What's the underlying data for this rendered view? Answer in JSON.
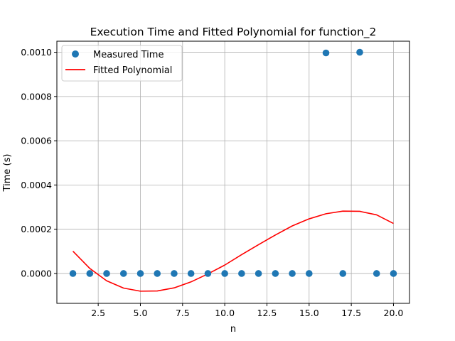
{
  "chart_data": {
    "type": "scatter",
    "title": "Execution Time and Fitted Polynomial for function_2",
    "xlabel": "n",
    "ylabel": "Time (s)",
    "xlim": [
      0.05,
      20.95
    ],
    "ylim": [
      -0.000135,
      0.00105
    ],
    "xticks": [
      2.5,
      5.0,
      7.5,
      10.0,
      12.5,
      15.0,
      17.5,
      20.0
    ],
    "xtick_labels": [
      "2.5",
      "5.0",
      "7.5",
      "10.0",
      "12.5",
      "15.0",
      "17.5",
      "20.0"
    ],
    "yticks": [
      0.0,
      0.0002,
      0.0004,
      0.0006,
      0.0008,
      0.001
    ],
    "ytick_labels": [
      "0.0000",
      "0.0002",
      "0.0004",
      "0.0006",
      "0.0008",
      "0.0010"
    ],
    "grid": true,
    "legend_position": "top-left",
    "series": [
      {
        "name": "Measured Time",
        "kind": "scatter",
        "color": "#1f77b4",
        "x": [
          1,
          2,
          3,
          4,
          5,
          6,
          7,
          8,
          9,
          10,
          11,
          12,
          13,
          14,
          15,
          16,
          17,
          18,
          19,
          20
        ],
        "y": [
          0,
          0,
          0,
          0,
          0,
          0,
          0,
          0,
          0,
          0,
          0,
          0,
          0,
          0,
          0,
          0.000997,
          0,
          0.001,
          0,
          0
        ]
      },
      {
        "name": "Fitted Polynomial",
        "kind": "line",
        "color": "#ff0000",
        "x": [
          1,
          2,
          3,
          4,
          5,
          6,
          7,
          8,
          9,
          10,
          11,
          12,
          13,
          14,
          15,
          16,
          17,
          18,
          19,
          20
        ],
        "y": [
          0.000101,
          2.3e-05,
          -3.3e-05,
          -6.6e-05,
          -8e-05,
          -7.9e-05,
          -6.5e-05,
          -3.8e-05,
          -2e-06,
          3.8e-05,
          8.5e-05,
          0.00013,
          0.000174,
          0.000215,
          0.000247,
          0.00027,
          0.000282,
          0.000281,
          0.000265,
          0.000226
        ]
      }
    ]
  }
}
